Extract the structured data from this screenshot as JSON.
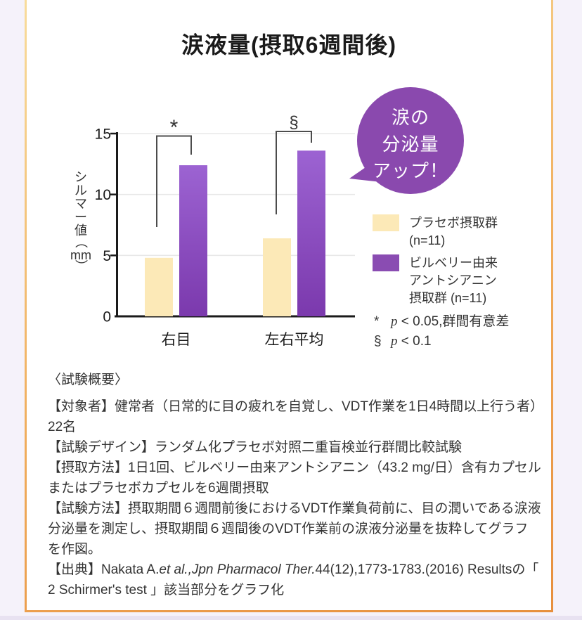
{
  "page": {
    "background": "#f5f2fa",
    "card_background": "#ffffff",
    "border_colors": [
      "#f8dd9d",
      "#f0ad5c",
      "#e78f3d"
    ]
  },
  "title": "涙液量(摂取6週間後)",
  "badge": {
    "line1": "涙の",
    "line2": "分泌量",
    "line3": "アップ！",
    "color": "#8a49ae",
    "text_color": "#ffffff"
  },
  "chart_data": {
    "type": "bar",
    "title": "涙液量(摂取6週間後)",
    "categories": [
      "右目",
      "左右平均"
    ],
    "series": [
      {
        "name": "プラセボ摂取群 (n=11)",
        "values": [
          4.8,
          6.4
        ],
        "color": "#fce9b7"
      },
      {
        "name": "ビルベリー由来アントシアニン摂取群 (n=11)",
        "values": [
          12.4,
          13.6
        ],
        "color_top": "#9c63d2",
        "color_bottom": "#7b39ad"
      }
    ],
    "ylabel": "シルマー値",
    "ylabel_open": "（",
    "ylabel_unit": "mm",
    "ylabel_close": "）",
    "ylim": [
      0,
      15
    ],
    "yticks": [
      0,
      5,
      10,
      15
    ],
    "grid": true,
    "legend_position": "right",
    "annotations": [
      {
        "category": "右目",
        "symbol": "*"
      },
      {
        "category": "左右平均",
        "symbol": "§"
      }
    ]
  },
  "legend": {
    "placebo": {
      "line1": "プラセボ摂取群",
      "line2": "(n=11)",
      "color": "#fce9b7"
    },
    "anthocyanin": {
      "line1": "ビルベリー由来",
      "line2": "アントシアニン",
      "line3": "摂取群 (n=11)",
      "color": "#8a4cb2"
    }
  },
  "notes": [
    {
      "symbol": "*",
      "p": "p",
      "rest": " < 0.05,群間有意差"
    },
    {
      "symbol": "§",
      "p": "p",
      "rest": " < 0.1"
    }
  ],
  "summary": {
    "heading": "〈試験概要〉",
    "p1": "【対象者】健常者（日常的に目の疲れを自覚し、VDT作業を1日4時間以上行う者）22名",
    "p2": "【試験デザイン】ランダム化プラセボ対照二重盲検並行群間比較試験",
    "p3": "【摂取方法】1日1回、ビルベリー由来アントシアニン（43.2 mg/日）含有カプセルまたはプラセボカプセルを6週間摂取",
    "p4": "【試験方法】摂取期間６週間前後におけるVDT作業負荷前に、目の潤いである涙液分泌量を測定し、摂取期間６週間後のVDT作業前の涙液分泌量を抜粋してグラフを作図。",
    "citation_prefix": "【出典】Nakata A.",
    "citation_italic": "et al.,Jpn Pharmacol Ther.",
    "citation_rest": "44(12),1773-1783.(2016) Resultsの「 2 Schirmer's test 」該当部分をグラフ化"
  }
}
